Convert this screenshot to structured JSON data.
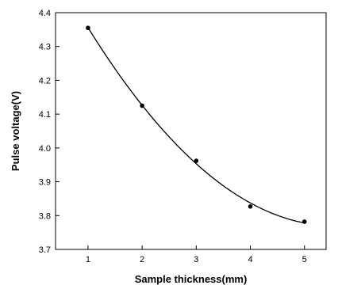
{
  "chart_data": {
    "type": "scatter",
    "title": "",
    "xlabel": "Sample thickness(mm)",
    "ylabel": "Pulse voltage(V)",
    "xlim": [
      0.4,
      5.4
    ],
    "ylim": [
      3.7,
      4.4
    ],
    "x_ticks": [
      1,
      2,
      3,
      4,
      5
    ],
    "y_ticks": [
      3.7,
      3.8,
      3.9,
      4.0,
      4.1,
      4.2,
      4.3,
      4.4
    ],
    "x_tick_labels": [
      "1",
      "2",
      "3",
      "4",
      "5"
    ],
    "y_tick_labels": [
      "3.7",
      "3.8",
      "3.9",
      "4.0",
      "4.1",
      "4.2",
      "4.3",
      "4.4"
    ],
    "grid": false,
    "legend": "none",
    "series": [
      {
        "x": [
          1,
          2,
          3,
          4,
          5
        ],
        "y": [
          4.355,
          4.125,
          3.962,
          3.827,
          3.782
        ],
        "marker": "circle",
        "color": "#000000"
      }
    ],
    "fit_curve": {
      "type": "quadratic",
      "color": "#000000"
    }
  }
}
